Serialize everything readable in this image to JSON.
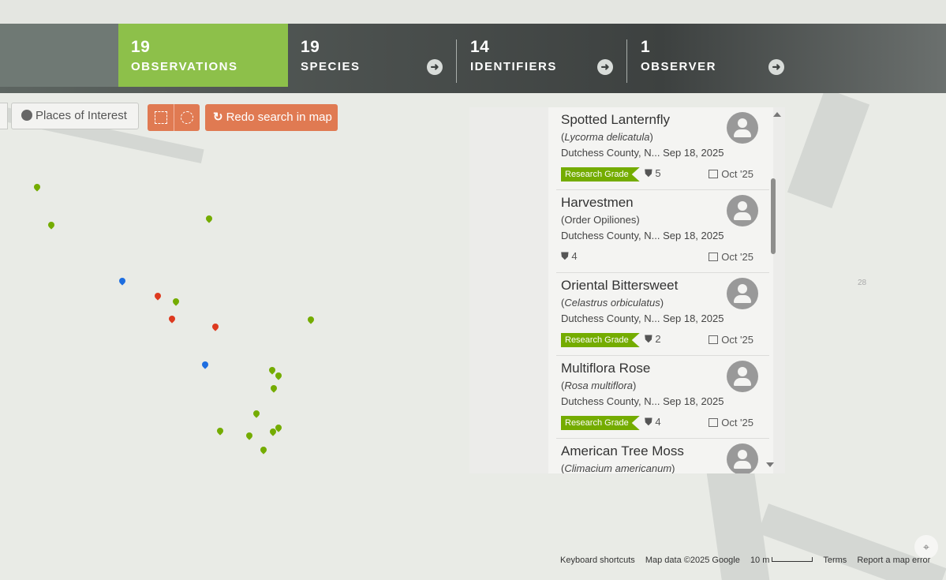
{
  "stats": {
    "observations": {
      "count": "19",
      "label": "OBSERVATIONS"
    },
    "species": {
      "count": "19",
      "label": "SPECIES"
    },
    "identifiers": {
      "count": "14",
      "label": "IDENTIFIERS"
    },
    "observers": {
      "count": "1",
      "label": "OBSERVER"
    }
  },
  "toolbar": {
    "places_label": "Places of Interest",
    "redo_label": "Redo search in map"
  },
  "observations": [
    {
      "name": "Spotted Lanternfly",
      "sci": "Lycorma delicatula",
      "sci_prefix": "",
      "place": "Dutchess County, N...",
      "observed": "Sep 18, 2025",
      "grade": "Research Grade",
      "ids": "5",
      "added": "Oct '25"
    },
    {
      "name": "Harvestmen",
      "sci": "",
      "sci_prefix": "Order Opiliones",
      "place": "Dutchess County, N...",
      "observed": "Sep 18, 2025",
      "grade": "",
      "ids": "4",
      "added": "Oct '25"
    },
    {
      "name": "Oriental Bittersweet",
      "sci": "Celastrus orbiculatus",
      "sci_prefix": "",
      "place": "Dutchess County, N...",
      "observed": "Sep 18, 2025",
      "grade": "Research Grade",
      "ids": "2",
      "added": "Oct '25"
    },
    {
      "name": "Multiflora Rose",
      "sci": "Rosa multiflora",
      "sci_prefix": "",
      "place": "Dutchess County, N...",
      "observed": "Sep 18, 2025",
      "grade": "Research Grade",
      "ids": "4",
      "added": "Oct '25"
    },
    {
      "name": "American Tree Moss",
      "sci": "Climacium americanum",
      "sci_prefix": "",
      "place": "",
      "observed": "",
      "grade": "",
      "ids": "",
      "added": ""
    }
  ],
  "map_footer": {
    "shortcuts": "Keyboard shortcuts",
    "map_data": "Map data ©2025 Google",
    "scale": "10 m",
    "terms": "Terms",
    "report": "Report a map error"
  },
  "map_label": "28",
  "colors": {
    "active_tab": "#8dc04a",
    "accent_button": "#e07a52",
    "research_grade": "#74ac00",
    "pin_plants": "#74ac00",
    "pin_insects": "#dd3a1f",
    "pin_other": "#1e6ee0"
  }
}
